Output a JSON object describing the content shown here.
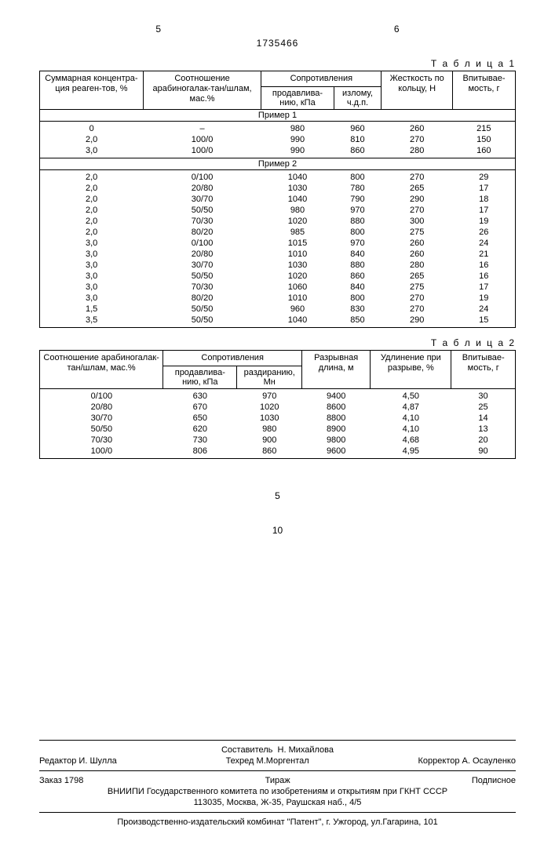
{
  "page_left": "5",
  "page_right": "6",
  "doc_number": "1735466",
  "table1": {
    "label": "Т а б л и ц а 1",
    "headers": {
      "c1": "Суммарная концентра-ция реаген-тов, %",
      "c2": "Соотношение арабиногалак-тан/шлам, мас.%",
      "c3_group": "Сопротивления",
      "c3a": "продавлива-нию, кПа",
      "c3b": "излому, ч.д.п.",
      "c4": "Жесткость по кольцу, Н",
      "c5": "Впитывае-мость, г"
    },
    "section1": "Пример 1",
    "rows1": [
      [
        "0",
        "–",
        "980",
        "960",
        "260",
        "215"
      ],
      [
        "2,0",
        "100/0",
        "990",
        "810",
        "270",
        "150"
      ],
      [
        "3,0",
        "100/0",
        "990",
        "860",
        "280",
        "160"
      ]
    ],
    "section2": "Пример 2",
    "rows2": [
      [
        "2,0",
        "0/100",
        "1040",
        "800",
        "270",
        "29"
      ],
      [
        "2,0",
        "20/80",
        "1030",
        "780",
        "265",
        "17"
      ],
      [
        "2,0",
        "30/70",
        "1040",
        "790",
        "290",
        "18"
      ],
      [
        "2,0",
        "50/50",
        "980",
        "970",
        "270",
        "17"
      ],
      [
        "2,0",
        "70/30",
        "1020",
        "880",
        "300",
        "19"
      ],
      [
        "2,0",
        "80/20",
        "985",
        "800",
        "275",
        "26"
      ],
      [
        "3,0",
        "0/100",
        "1015",
        "970",
        "260",
        "24"
      ],
      [
        "3,0",
        "20/80",
        "1010",
        "840",
        "260",
        "21"
      ],
      [
        "3,0",
        "30/70",
        "1030",
        "880",
        "280",
        "16"
      ],
      [
        "3,0",
        "50/50",
        "1020",
        "860",
        "265",
        "16"
      ],
      [
        "3,0",
        "70/30",
        "1060",
        "840",
        "275",
        "17"
      ],
      [
        "3,0",
        "80/20",
        "1010",
        "800",
        "270",
        "19"
      ],
      [
        "1,5",
        "50/50",
        "960",
        "830",
        "270",
        "24"
      ],
      [
        "3,5",
        "50/50",
        "1040",
        "850",
        "290",
        "15"
      ]
    ]
  },
  "table2": {
    "label": "Т а б л и ц а 2",
    "headers": {
      "c1": "Соотношение арабиногалак-тан/шлам, мас.%",
      "c2_group": "Сопротивления",
      "c2a": "продавлива-нию, кПа",
      "c2b": "раздиранию, Мн",
      "c3": "Разрывная длина, м",
      "c4": "Удлинение при разрыве, %",
      "c5": "Впитывае-мость, г"
    },
    "rows": [
      [
        "0/100",
        "630",
        "970",
        "9400",
        "4,50",
        "30"
      ],
      [
        "20/80",
        "670",
        "1020",
        "8600",
        "4,87",
        "25"
      ],
      [
        "30/70",
        "650",
        "1030",
        "8800",
        "4,10",
        "14"
      ],
      [
        "50/50",
        "620",
        "980",
        "8900",
        "4,10",
        "13"
      ],
      [
        "70/30",
        "730",
        "900",
        "9800",
        "4,68",
        "20"
      ],
      [
        "100/0",
        "806",
        "860",
        "9600",
        "4,95",
        "90"
      ]
    ]
  },
  "mid5": "5",
  "mid10": "10",
  "footer": {
    "compiler_label": "Составитель",
    "compiler": "Н. Михайлова",
    "editor_label": "Редактор",
    "editor": "И. Шулла",
    "tehred_label": "Техред",
    "tehred": "М.Моргентал",
    "corrector_label": "Корректор",
    "corrector": "А. Осауленко",
    "order": "Заказ 1798",
    "tirazh": "Тираж",
    "subscr": "Подписное",
    "org1": "ВНИИПИ Государственного комитета по изобретениям и открытиям при ГКНТ СССР",
    "addr1": "113035, Москва, Ж-35, Раушская наб., 4/5",
    "org2": "Производственно-издательский комбинат \"Патент\", г. Ужгород, ул.Гагарина, 101"
  }
}
